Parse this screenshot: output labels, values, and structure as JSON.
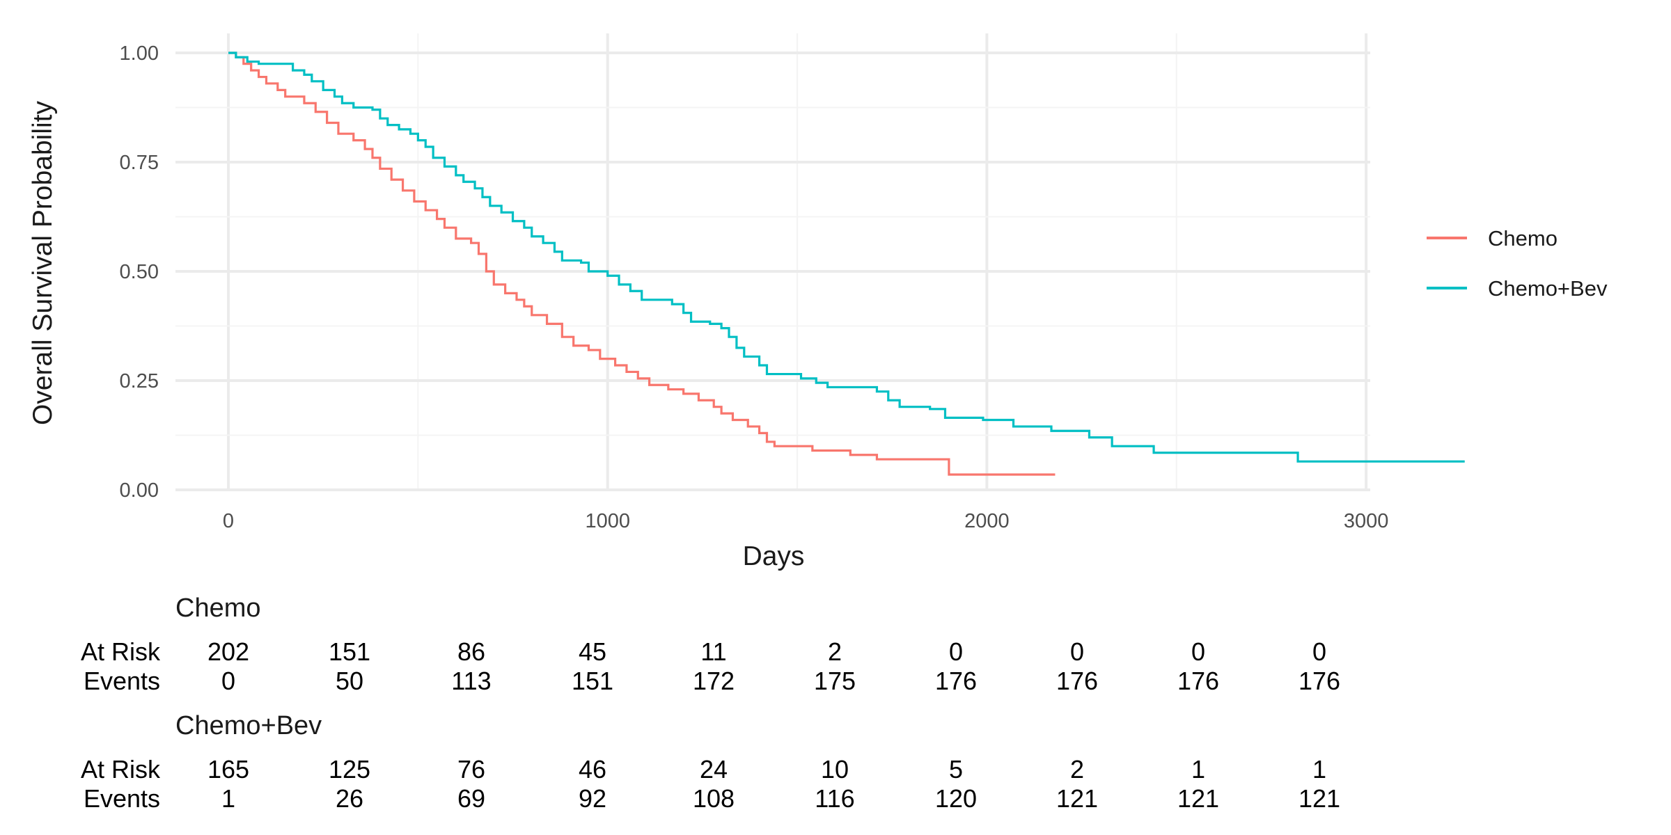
{
  "chart_data": {
    "type": "line",
    "subtype": "kaplan-meier",
    "xlabel": "Days",
    "ylabel": "Overall Survival Probability",
    "xlim": [
      0,
      3000
    ],
    "ylim": [
      0,
      1
    ],
    "x_ticks": [
      "0",
      "1000",
      "2000",
      "3000"
    ],
    "y_ticks": [
      "0.00",
      "0.25",
      "0.50",
      "0.75",
      "1.00"
    ],
    "grid": true,
    "legend_position": "right",
    "series": [
      {
        "name": "Chemo",
        "color": "#F8766D",
        "points": [
          [
            0,
            1.0
          ],
          [
            20,
            0.99
          ],
          [
            40,
            0.975
          ],
          [
            60,
            0.96
          ],
          [
            80,
            0.945
          ],
          [
            100,
            0.93
          ],
          [
            130,
            0.915
          ],
          [
            150,
            0.9
          ],
          [
            200,
            0.885
          ],
          [
            230,
            0.865
          ],
          [
            260,
            0.84
          ],
          [
            290,
            0.815
          ],
          [
            330,
            0.8
          ],
          [
            360,
            0.78
          ],
          [
            380,
            0.76
          ],
          [
            400,
            0.735
          ],
          [
            430,
            0.71
          ],
          [
            460,
            0.685
          ],
          [
            490,
            0.66
          ],
          [
            520,
            0.64
          ],
          [
            550,
            0.62
          ],
          [
            570,
            0.6
          ],
          [
            600,
            0.575
          ],
          [
            640,
            0.565
          ],
          [
            660,
            0.54
          ],
          [
            680,
            0.5
          ],
          [
            700,
            0.47
          ],
          [
            730,
            0.45
          ],
          [
            760,
            0.435
          ],
          [
            780,
            0.42
          ],
          [
            800,
            0.4
          ],
          [
            840,
            0.38
          ],
          [
            880,
            0.35
          ],
          [
            910,
            0.33
          ],
          [
            950,
            0.32
          ],
          [
            980,
            0.3
          ],
          [
            1020,
            0.285
          ],
          [
            1050,
            0.27
          ],
          [
            1080,
            0.255
          ],
          [
            1110,
            0.24
          ],
          [
            1160,
            0.23
          ],
          [
            1200,
            0.22
          ],
          [
            1240,
            0.205
          ],
          [
            1280,
            0.19
          ],
          [
            1300,
            0.175
          ],
          [
            1330,
            0.16
          ],
          [
            1370,
            0.145
          ],
          [
            1400,
            0.13
          ],
          [
            1420,
            0.11
          ],
          [
            1440,
            0.1
          ],
          [
            1540,
            0.09
          ],
          [
            1640,
            0.08
          ],
          [
            1710,
            0.07
          ],
          [
            1820,
            0.07
          ],
          [
            1900,
            0.035
          ],
          [
            2180,
            0.035
          ]
        ]
      },
      {
        "name": "Chemo+Bev",
        "color": "#00BFC4",
        "points": [
          [
            0,
            1.0
          ],
          [
            20,
            0.99
          ],
          [
            50,
            0.98
          ],
          [
            80,
            0.975
          ],
          [
            130,
            0.975
          ],
          [
            170,
            0.96
          ],
          [
            200,
            0.95
          ],
          [
            220,
            0.935
          ],
          [
            250,
            0.915
          ],
          [
            280,
            0.9
          ],
          [
            300,
            0.885
          ],
          [
            330,
            0.875
          ],
          [
            380,
            0.87
          ],
          [
            400,
            0.85
          ],
          [
            420,
            0.835
          ],
          [
            450,
            0.825
          ],
          [
            480,
            0.815
          ],
          [
            500,
            0.8
          ],
          [
            520,
            0.785
          ],
          [
            540,
            0.76
          ],
          [
            570,
            0.74
          ],
          [
            600,
            0.72
          ],
          [
            620,
            0.705
          ],
          [
            650,
            0.69
          ],
          [
            670,
            0.67
          ],
          [
            690,
            0.65
          ],
          [
            720,
            0.635
          ],
          [
            750,
            0.615
          ],
          [
            780,
            0.6
          ],
          [
            800,
            0.58
          ],
          [
            830,
            0.565
          ],
          [
            860,
            0.545
          ],
          [
            880,
            0.525
          ],
          [
            930,
            0.52
          ],
          [
            950,
            0.5
          ],
          [
            1000,
            0.49
          ],
          [
            1030,
            0.47
          ],
          [
            1060,
            0.455
          ],
          [
            1090,
            0.435
          ],
          [
            1170,
            0.425
          ],
          [
            1200,
            0.405
          ],
          [
            1220,
            0.385
          ],
          [
            1270,
            0.38
          ],
          [
            1300,
            0.37
          ],
          [
            1320,
            0.35
          ],
          [
            1340,
            0.325
          ],
          [
            1360,
            0.305
          ],
          [
            1400,
            0.285
          ],
          [
            1420,
            0.265
          ],
          [
            1510,
            0.255
          ],
          [
            1550,
            0.245
          ],
          [
            1580,
            0.235
          ],
          [
            1710,
            0.225
          ],
          [
            1740,
            0.205
          ],
          [
            1770,
            0.19
          ],
          [
            1850,
            0.185
          ],
          [
            1890,
            0.165
          ],
          [
            1990,
            0.16
          ],
          [
            2070,
            0.145
          ],
          [
            2170,
            0.135
          ],
          [
            2270,
            0.12
          ],
          [
            2330,
            0.1
          ],
          [
            2440,
            0.085
          ],
          [
            2700,
            0.085
          ],
          [
            2820,
            0.065
          ],
          [
            3260,
            0.065
          ]
        ]
      }
    ],
    "risk_table": {
      "row_labels": [
        "At Risk",
        "Events"
      ],
      "groups": [
        {
          "name": "Chemo",
          "at_risk": [
            "202",
            "151",
            "86",
            "45",
            "11",
            "2",
            "0",
            "0",
            "0",
            "0"
          ],
          "events": [
            "0",
            "50",
            "113",
            "151",
            "172",
            "175",
            "176",
            "176",
            "176",
            "176"
          ]
        },
        {
          "name": "Chemo+Bev",
          "at_risk": [
            "165",
            "125",
            "76",
            "46",
            "24",
            "10",
            "5",
            "2",
            "1",
            "1"
          ],
          "events": [
            "1",
            "26",
            "69",
            "92",
            "108",
            "116",
            "120",
            "121",
            "121",
            "121"
          ]
        }
      ]
    }
  }
}
